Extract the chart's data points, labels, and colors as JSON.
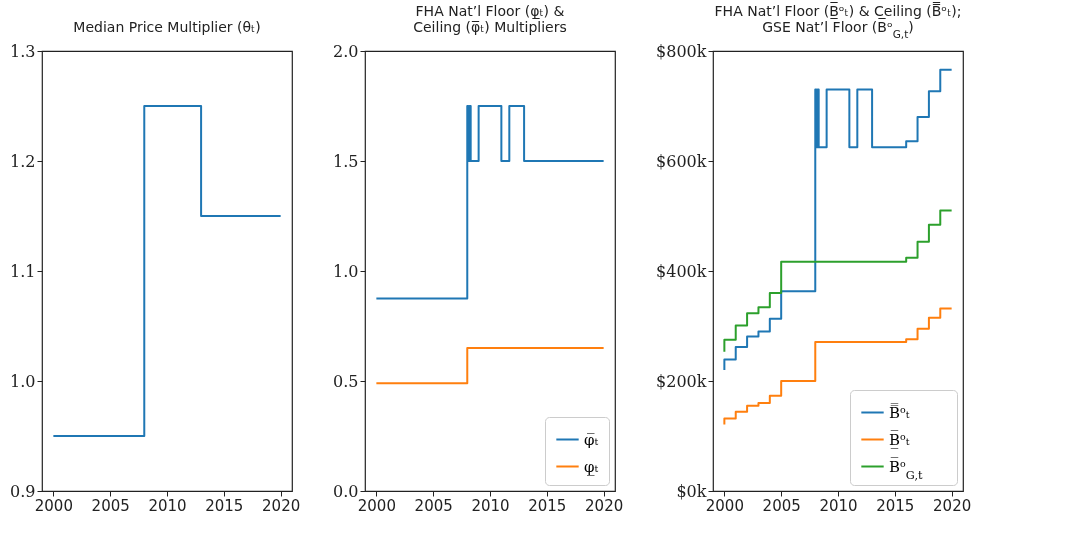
{
  "chart_data": [
    {
      "type": "step",
      "title": "Median Price Multiplier (θₜ)",
      "xlim": [
        1999,
        2021
      ],
      "xticks": [
        2000,
        2005,
        2010,
        2015,
        2020
      ],
      "ylim": [
        0.9,
        1.3
      ],
      "yticks": [
        0.9,
        {
          "value": 1,
          "label": "1.0"
        },
        1.1,
        1.2,
        1.3
      ],
      "grid": false,
      "legend": false,
      "series": [
        {
          "color": "#1f77b4",
          "x": [
            2000,
            2008,
            2013,
            2020
          ],
          "values": [
            0.95,
            1.25,
            1.15,
            1.15
          ]
        }
      ]
    },
    {
      "type": "step",
      "title": "FHA Nat’l Floor (φ̲ₜ) &\nCeiling (φ̅ₜ) Multipliers",
      "xlim": [
        1999,
        2021
      ],
      "xticks": [
        2000,
        2005,
        2010,
        2015,
        2020
      ],
      "ylim": [
        0,
        2
      ],
      "yticks": [
        {
          "value": 0,
          "label": "0.0"
        },
        0.5,
        {
          "value": 1,
          "label": "1.0"
        },
        1.5,
        {
          "value": 2,
          "label": "2.0"
        }
      ],
      "grid": false,
      "legend": "bottom right",
      "series": [
        {
          "name": "φ̅ₜ",
          "color": "#1f77b4",
          "x": [
            2000,
            2008,
            2008.1,
            2008.2,
            2008.3,
            2009,
            2011,
            2011.7,
            2013,
            2020
          ],
          "values": [
            0.875,
            1.75,
            1.5,
            1.75,
            1.5,
            1.75,
            1.5,
            1.75,
            1.5,
            1.5
          ]
        },
        {
          "name": "φ̲ₜ",
          "color": "#ff7f0e",
          "x": [
            2000,
            2008,
            2020
          ],
          "values": [
            0.49,
            0.65,
            0.65
          ]
        }
      ]
    },
    {
      "type": "step",
      "title": "FHA Nat’l Floor (B̲̅ᵒₜ) & Ceiling (B̿ᵒₜ);\nGSE Nat’l Floor (B̅ᵒ$_{G,t}$)",
      "xlim": [
        1999,
        2021
      ],
      "xticks": [
        2000,
        2005,
        2010,
        2015,
        2020
      ],
      "ylim": [
        0,
        800
      ],
      "yticks": [
        {
          "value": 0,
          "label": "$0k"
        },
        {
          "value": 200,
          "label": "$200k"
        },
        {
          "value": 400,
          "label": "$400k"
        },
        {
          "value": 600,
          "label": "$600k"
        },
        {
          "value": 800,
          "label": "$800k"
        }
      ],
      "grid": false,
      "legend": "bottom right",
      "series": [
        {
          "name": "B̿ᵒₜ",
          "color": "#1f77b4",
          "x": [
            2000,
            2000,
            2001,
            2002,
            2003,
            2004,
            2005,
            2008,
            2008.1,
            2008.2,
            2008.3,
            2009,
            2011,
            2011.7,
            2013,
            2016,
            2017,
            2018,
            2019,
            2020
          ],
          "values": [
            220,
            239,
            262,
            281,
            290,
            313,
            363,
            730,
            625,
            730,
            625,
            730,
            625,
            730,
            625,
            636,
            680,
            727,
            766,
            766
          ]
        },
        {
          "name": "B̲̅ᵒₜ",
          "color": "#ff7f0e",
          "x": [
            2000,
            2000,
            2001,
            2002,
            2003,
            2004,
            2005,
            2008,
            2016,
            2017,
            2018,
            2019,
            2020
          ],
          "values": [
            121,
            132,
            144,
            155,
            160,
            173,
            200,
            271,
            276,
            295,
            315,
            332,
            332
          ]
        },
        {
          "name": "B̅ᵒ$_{G,t}$",
          "color": "#2ca02c",
          "x": [
            2000,
            2000,
            2001,
            2002,
            2003,
            2004,
            2005,
            2016,
            2017,
            2018,
            2019,
            2020
          ],
          "values": [
            253,
            275,
            301,
            323,
            334,
            360,
            417,
            424,
            453,
            484,
            510,
            510
          ]
        }
      ]
    }
  ]
}
